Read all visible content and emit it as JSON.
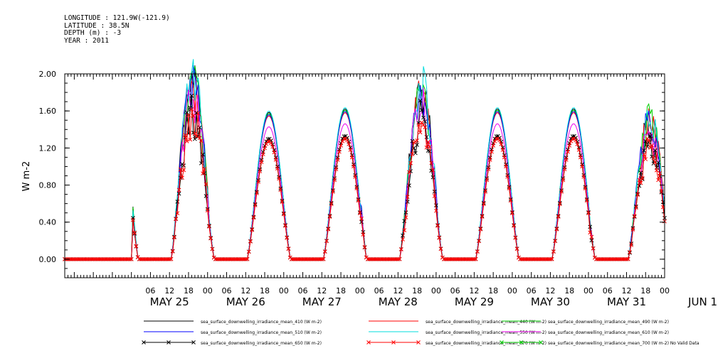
{
  "header": {
    "lines": [
      "LONGITUDE : 121.9W(-121.9)",
      "LATITUDE : 38.5N",
      "DEPTH (m) : -3",
      "YEAR : 2011"
    ]
  },
  "chart_data": {
    "type": "line",
    "title": "",
    "xlabel": "",
    "ylabel": "W m-2",
    "ylim": [
      -0.2,
      2.0
    ],
    "xlim_days": [
      24.125,
      32.0
    ],
    "yticks": [
      "0.00",
      "0.40",
      "0.80",
      "1.20",
      "1.60",
      "2.00"
    ],
    "x_hour_labels": [
      {
        "day": 25.25,
        "label": "06"
      },
      {
        "day": 25.5,
        "label": "12"
      },
      {
        "day": 25.75,
        "label": "18"
      },
      {
        "day": 26.0,
        "label": "00"
      },
      {
        "day": 26.25,
        "label": "06"
      },
      {
        "day": 26.5,
        "label": "12"
      },
      {
        "day": 26.75,
        "label": "18"
      },
      {
        "day": 27.0,
        "label": "00"
      },
      {
        "day": 27.25,
        "label": "06"
      },
      {
        "day": 27.5,
        "label": "12"
      },
      {
        "day": 27.75,
        "label": "18"
      },
      {
        "day": 28.0,
        "label": "00"
      },
      {
        "day": 28.25,
        "label": "06"
      },
      {
        "day": 28.5,
        "label": "12"
      },
      {
        "day": 28.75,
        "label": "18"
      },
      {
        "day": 29.0,
        "label": "00"
      },
      {
        "day": 29.25,
        "label": "06"
      },
      {
        "day": 29.5,
        "label": "12"
      },
      {
        "day": 29.75,
        "label": "18"
      },
      {
        "day": 30.0,
        "label": "00"
      },
      {
        "day": 30.25,
        "label": "06"
      },
      {
        "day": 30.5,
        "label": "12"
      },
      {
        "day": 30.75,
        "label": "18"
      },
      {
        "day": 31.0,
        "label": "00"
      },
      {
        "day": 31.25,
        "label": "06"
      },
      {
        "day": 31.5,
        "label": "12"
      },
      {
        "day": 31.75,
        "label": "18"
      },
      {
        "day": 32.0,
        "label": "00"
      }
    ],
    "x_day_labels": [
      "MAY 25",
      "MAY 26",
      "MAY 27",
      "MAY 28",
      "MAY 29",
      "MAY 30",
      "MAY 31",
      "JUN 1"
    ],
    "series": [
      {
        "name": "sea_surface_downwelling_irradiance_mean_410 (W m-2)",
        "color": "#000000",
        "scale": 1.22,
        "marker": "none"
      },
      {
        "name": "sea_surface_downwelling_irradiance_mean_440 (W m-2)",
        "color": "#ff0000",
        "scale": 1.19,
        "marker": "none"
      },
      {
        "name": "sea_surface_downwelling_irradiance_mean_490 (W m-2)",
        "color": "#00cc00",
        "scale": 1.21,
        "marker": "none"
      },
      {
        "name": "sea_surface_downwelling_irradiance_mean_510 (W m-2)",
        "color": "#0000ff",
        "scale": 1.2,
        "marker": "none"
      },
      {
        "name": "sea_surface_downwelling_irradiance_mean_550 (W m-2)",
        "color": "#00dddd",
        "scale": 1.23,
        "marker": "none"
      },
      {
        "name": "sea_surface_downwelling_irradiance_mean_610 (W m-2)",
        "color": "#ee00ee",
        "scale": 1.1,
        "marker": "none"
      },
      {
        "name": "sea_surface_downwelling_irradiance_mean_650 (W m-2)",
        "color": "#000000",
        "scale": 1.0,
        "marker": "x"
      },
      {
        "name": "sea_surface_downwelling_irradiance_mean_670 (W m-2)",
        "color": "#ff0000",
        "scale": 0.98,
        "marker": "x"
      },
      {
        "name": "sea_surface_downwelling_irradiance_mean_700 (W m-2) No Valid Data",
        "color": "#00cc00",
        "scale": 0,
        "marker": "x"
      }
    ],
    "daily_peaks_650nm": [
      {
        "date": "2011-05-25",
        "peak": 1.55
      },
      {
        "date": "2011-05-26",
        "peak": 1.3
      },
      {
        "date": "2011-05-27",
        "peak": 1.33
      },
      {
        "date": "2011-05-28",
        "peak": 1.5
      },
      {
        "date": "2011-05-29",
        "peak": 1.33
      },
      {
        "date": "2011-05-30",
        "peak": 1.33
      },
      {
        "date": "2011-05-31",
        "peak": 1.22
      }
    ],
    "grid": false,
    "legend_position": "bottom"
  }
}
